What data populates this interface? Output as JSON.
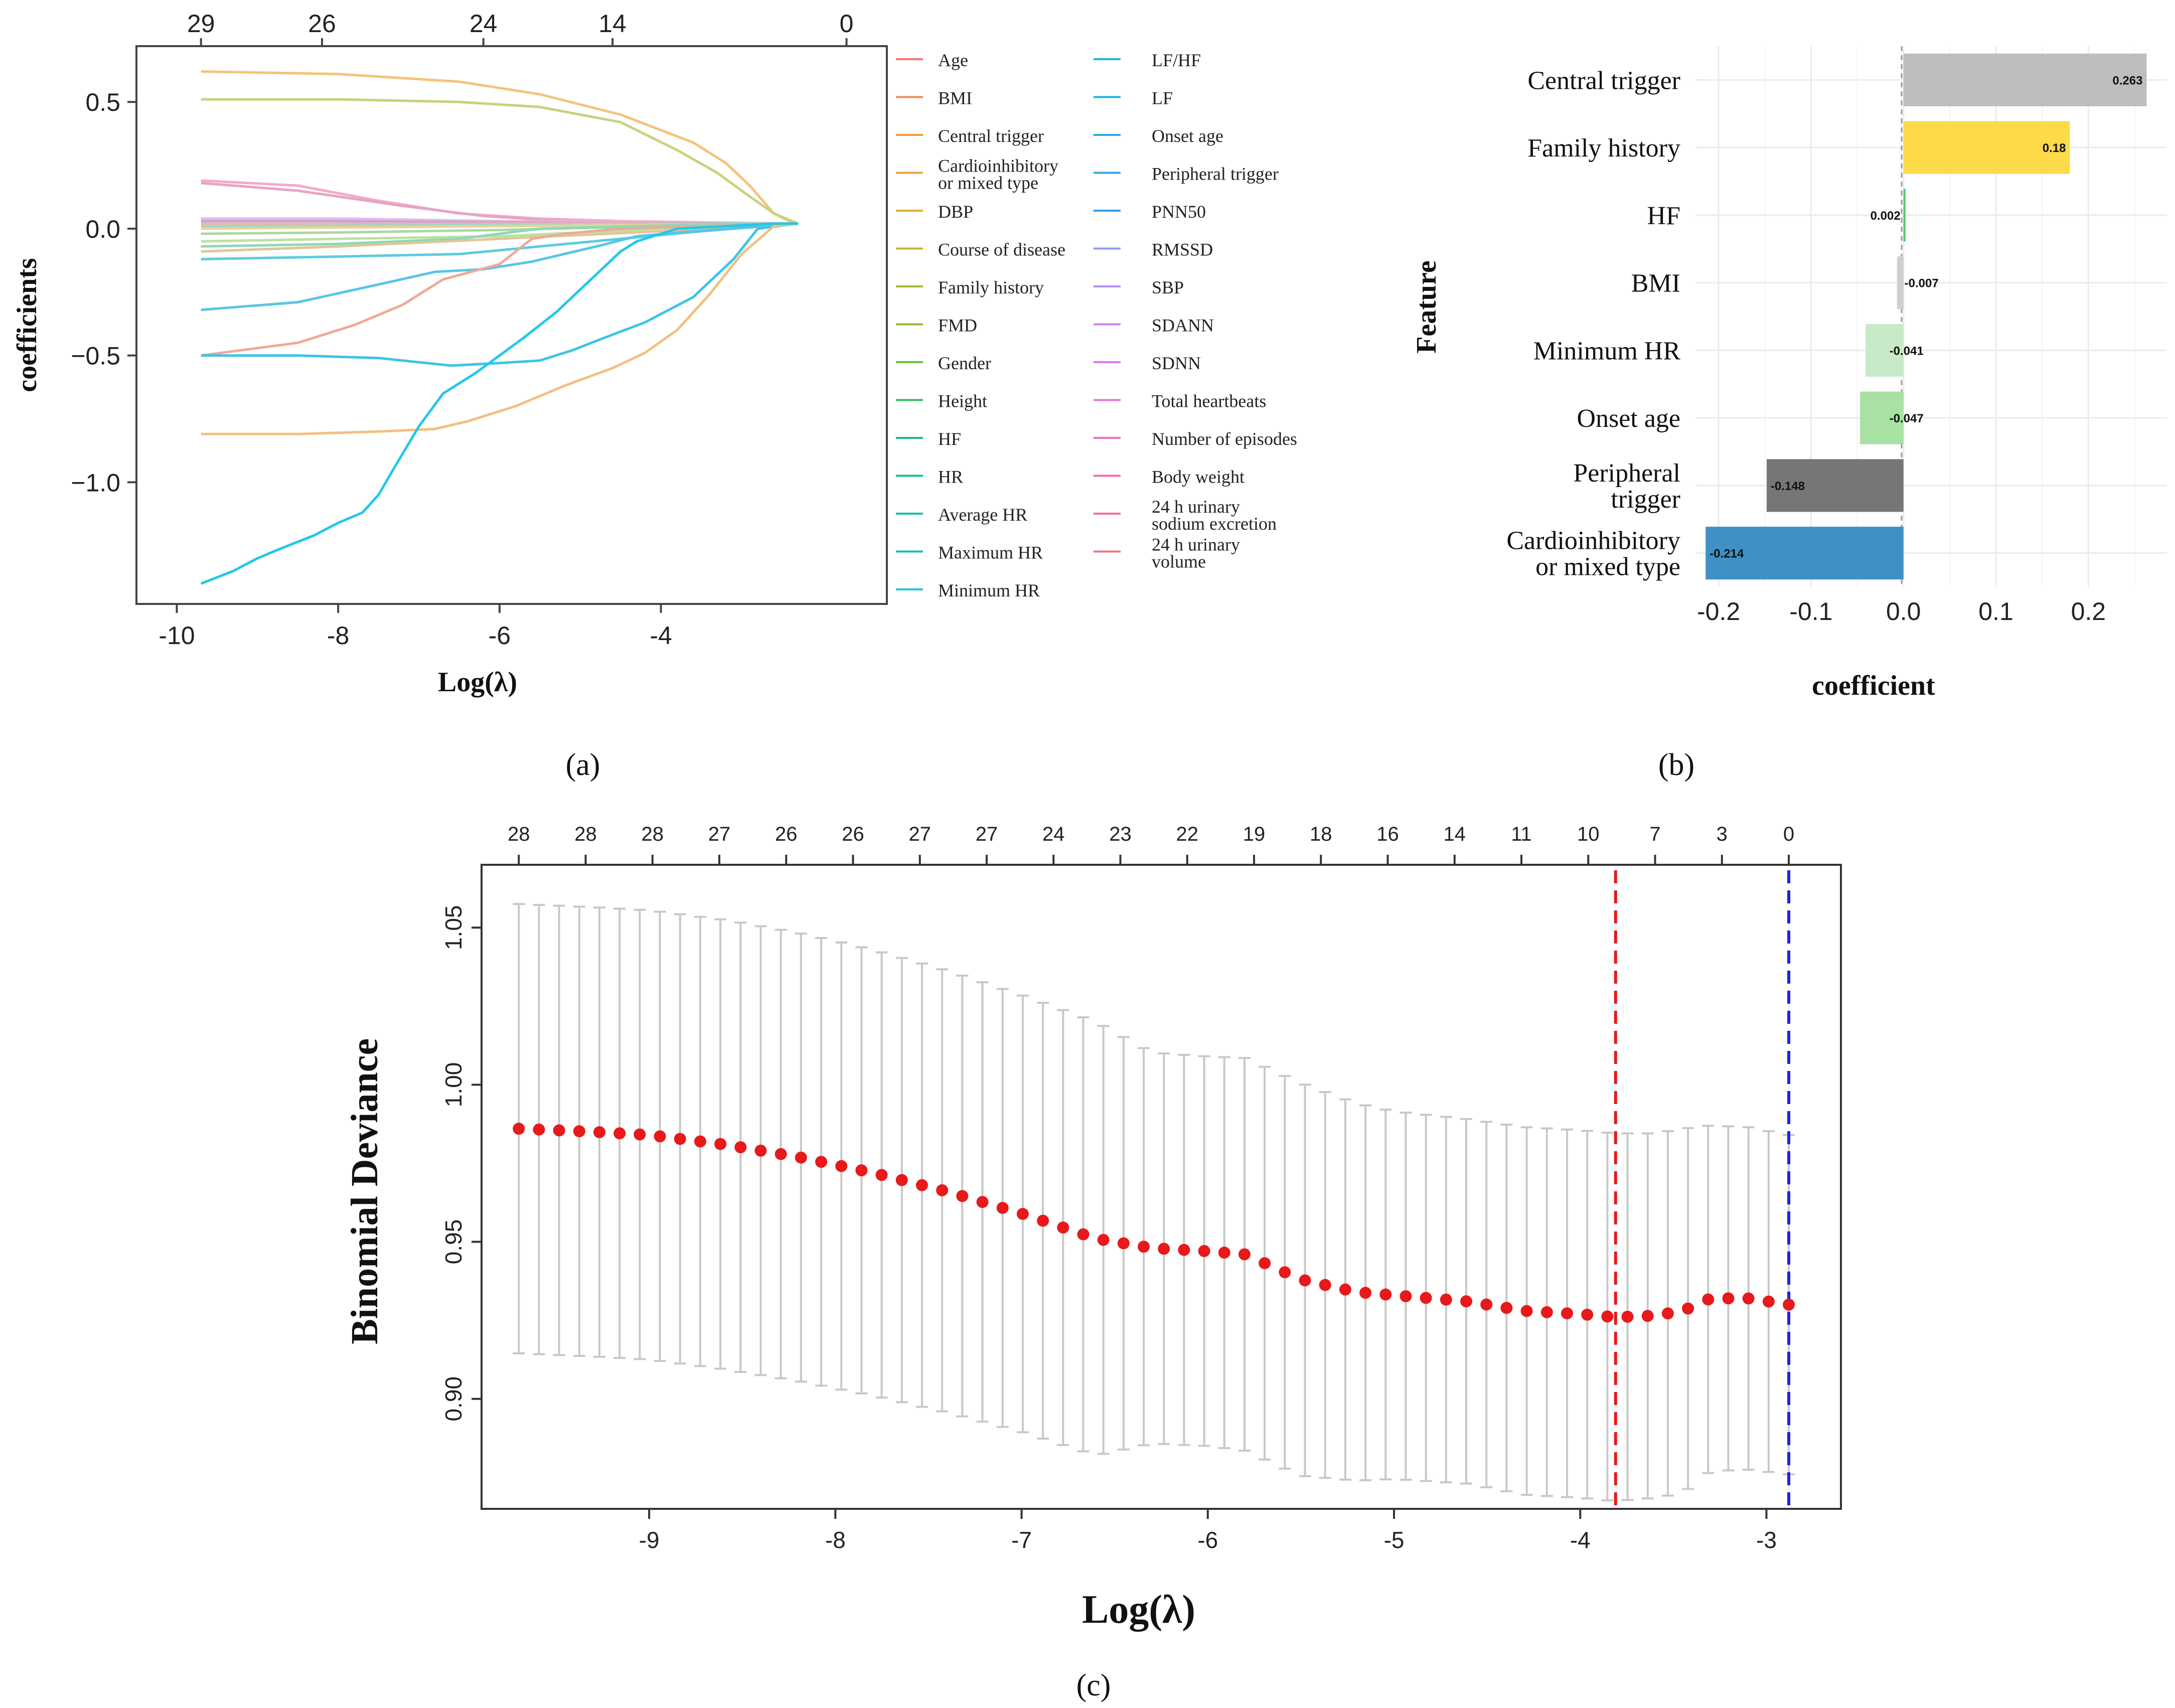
{
  "chart_data": [
    {
      "id": "a",
      "type": "line",
      "panel_label": "(a)",
      "title": "",
      "xlabel": "Log(λ)",
      "ylabel": "coefficients",
      "xlim": [
        -10.5,
        -1.2
      ],
      "ylim": [
        -1.48,
        0.72
      ],
      "xticks": [
        -10,
        -8,
        -6,
        -4
      ],
      "yticks": [
        0.5,
        0.0,
        -0.5,
        -1.0
      ],
      "ytick_labels": [
        "0.5",
        "0.0",
        "−0.5",
        "−1.0"
      ],
      "top_axis_x": [
        -9.7,
        -8.2,
        -6.2,
        -4.6,
        -1.7
      ],
      "top_axis_labels": [
        "29",
        "26",
        "24",
        "14",
        "0"
      ],
      "legend_position": "right",
      "legend_col1": [
        "Age",
        "BMI",
        "Central trigger",
        "Cardioinhibitory or mixed type",
        "DBP",
        "Course of disease",
        "Family history",
        "FMD",
        "Gender",
        "Height",
        "HF",
        "HR",
        "Average HR",
        "Maximum HR",
        "Minimum HR"
      ],
      "legend_col2": [
        "LF/HF",
        "LF",
        "Onset age",
        "Peripheral trigger",
        "PNN50",
        "RMSSD",
        "SBP",
        "SDANN",
        "SDNN",
        "Total heartbeats",
        "Number of episodes",
        "Body weight",
        "24 h urinary sodium excretion",
        "24 h urinary volume"
      ],
      "legend_colors_col1": [
        "#F8766D",
        "#F08A5D",
        "#EE9B3A",
        "#E8A33A",
        "#DDAD2F",
        "#C9B233",
        "#A8B730",
        "#93BB35",
        "#6EC03F",
        "#2DBE5A",
        "#19BF78",
        "#11C08F",
        "#10C0A5",
        "#14BFBA",
        "#1EC8D8"
      ],
      "legend_colors_col2": [
        "#1AB8DD",
        "#1EB3E3",
        "#28ABE6",
        "#35A3EA",
        "#2F9DEB",
        "#8E9AF0",
        "#B48CF2",
        "#CA80F0",
        "#DF78E6",
        "#EB72D6",
        "#F16CC3",
        "#F46AAE",
        "#F56C99",
        "#F47285"
      ],
      "series": [
        {
          "name": "Central trigger",
          "color": "#F5C37A",
          "x": [
            -9.7,
            -8,
            -6.5,
            -5.5,
            -4.5,
            -3.6,
            -3.2,
            -2.9,
            -2.6,
            -2.35
          ],
          "y": [
            0.62,
            0.61,
            0.58,
            0.53,
            0.45,
            0.34,
            0.26,
            0.17,
            0.06,
            0.02
          ]
        },
        {
          "name": "Family history",
          "color": "#C8D27A",
          "x": [
            -9.7,
            -8,
            -6.5,
            -5.5,
            -4.5,
            -3.8,
            -3.3,
            -3.0,
            -2.6,
            -2.3
          ],
          "y": [
            0.51,
            0.51,
            0.5,
            0.48,
            0.42,
            0.31,
            0.22,
            0.15,
            0.06,
            0.02
          ]
        },
        {
          "name": "SDANN",
          "color": "#F6A8C8",
          "x": [
            -9.7,
            -8.5,
            -7.5,
            -6.5,
            -5.5,
            -4.5,
            -3.5,
            -2.3
          ],
          "y": [
            0.19,
            0.17,
            0.11,
            0.06,
            0.04,
            0.03,
            0.025,
            0.02
          ]
        },
        {
          "name": "SDNN",
          "color": "#E7A3C4",
          "x": [
            -9.7,
            -8.5,
            -7.2,
            -6.2,
            -5.2,
            -4.2,
            -3.2,
            -2.3
          ],
          "y": [
            0.18,
            0.15,
            0.09,
            0.05,
            0.03,
            0.025,
            0.02,
            0.02
          ]
        },
        {
          "name": "Total heartbeats",
          "color": "#E6B8E8",
          "x": [
            -9.7,
            -8,
            -6,
            -4,
            -2.3
          ],
          "y": [
            0.04,
            0.04,
            0.03,
            0.025,
            0.02
          ]
        },
        {
          "name": "RMSSD",
          "color": "#BFA3E8",
          "x": [
            -9.7,
            -8,
            -6,
            -4,
            -2.3
          ],
          "y": [
            0.03,
            0.03,
            0.025,
            0.022,
            0.02
          ]
        },
        {
          "name": "Age",
          "color": "#F5B0A6",
          "x": [
            -9.7,
            -8,
            -6,
            -4,
            -2.3
          ],
          "y": [
            0.02,
            0.02,
            0.02,
            0.02,
            0.02
          ]
        },
        {
          "name": "HR",
          "color": "#9DD8C4",
          "x": [
            -9.7,
            -8,
            -6,
            -4,
            -2.3
          ],
          "y": [
            0.01,
            0.012,
            0.015,
            0.018,
            0.02
          ]
        },
        {
          "name": "DBP",
          "color": "#E8D29A",
          "x": [
            -9.7,
            -8,
            -6,
            -4,
            -2.3
          ],
          "y": [
            0.0,
            0.005,
            0.01,
            0.015,
            0.02
          ]
        },
        {
          "name": "Height",
          "color": "#A9D9A0",
          "x": [
            -9.7,
            -8,
            -6,
            -4,
            -2.3
          ],
          "y": [
            -0.02,
            -0.015,
            -0.005,
            0.01,
            0.02
          ]
        },
        {
          "name": "Gender",
          "color": "#BFE0A0",
          "x": [
            -9.7,
            -8,
            -6,
            -4,
            -2.3
          ],
          "y": [
            -0.05,
            -0.04,
            -0.03,
            0.0,
            0.02
          ]
        },
        {
          "name": "Onset age",
          "color": "#8FD7B8",
          "x": [
            -9.7,
            -8,
            -6.5,
            -5.5,
            -4.3,
            -3.2,
            -2.3
          ],
          "y": [
            -0.07,
            -0.06,
            -0.04,
            0.0,
            0.01,
            0.02,
            0.02
          ]
        },
        {
          "name": "Course of disease",
          "color": "#DCC898",
          "x": [
            -9.7,
            -8,
            -6,
            -4,
            -2.3
          ],
          "y": [
            -0.09,
            -0.07,
            -0.04,
            -0.01,
            0.02
          ]
        },
        {
          "name": "Peripheral trigger",
          "color": "#5CCBE0",
          "x": [
            -9.7,
            -8,
            -6.5,
            -5.5,
            -4.5,
            -3.5,
            -2.3
          ],
          "y": [
            -0.12,
            -0.11,
            -0.1,
            -0.07,
            -0.04,
            -0.01,
            0.02
          ]
        },
        {
          "name": "LF",
          "color": "#57C6E4",
          "x": [
            -9.7,
            -8.5,
            -7.5,
            -6.8,
            -6.2,
            -5.6,
            -4.8,
            -4.3,
            -3.6,
            -2.3
          ],
          "y": [
            -0.32,
            -0.29,
            -0.22,
            -0.17,
            -0.16,
            -0.13,
            -0.07,
            -0.03,
            -0.01,
            0.02
          ]
        },
        {
          "name": "BMI",
          "color": "#F0A898",
          "x": [
            -9.7,
            -8.5,
            -7.8,
            -7.2,
            -6.7,
            -6,
            -5.6,
            -5.2,
            -4.5,
            -3.5,
            -2.3
          ],
          "y": [
            -0.5,
            -0.45,
            -0.38,
            -0.3,
            -0.2,
            -0.14,
            -0.04,
            -0.02,
            0.0,
            0.01,
            0.02
          ]
        },
        {
          "name": "Minimum HR",
          "color": "#3BC4E8",
          "x": [
            -9.7,
            -8.5,
            -7.5,
            -6.6,
            -6,
            -5.5,
            -5.1,
            -4.7,
            -4.2,
            -3.6,
            -3.1,
            -2.8,
            -2.3
          ],
          "y": [
            -0.5,
            -0.5,
            -0.51,
            -0.54,
            -0.53,
            -0.52,
            -0.48,
            -0.43,
            -0.37,
            -0.27,
            -0.12,
            0.0,
            0.02
          ]
        },
        {
          "name": "Cardioinhibitory or mixed type",
          "color": "#F2C07E",
          "x": [
            -9.7,
            -8.5,
            -7.5,
            -6.8,
            -6.4,
            -5.8,
            -5.2,
            -4.6,
            -4.2,
            -3.8,
            -3.4,
            -3.0,
            -2.6,
            -2.3
          ],
          "y": [
            -0.81,
            -0.81,
            -0.8,
            -0.79,
            -0.76,
            -0.7,
            -0.62,
            -0.55,
            -0.49,
            -0.4,
            -0.26,
            -0.1,
            0.01,
            0.02
          ]
        },
        {
          "name": "LF/HF",
          "color": "#22C8E8",
          "x": [
            -9.7,
            -9.3,
            -9,
            -8.7,
            -8.3,
            -8,
            -7.7,
            -7.5,
            -7.3,
            -7,
            -6.7,
            -6.3,
            -6,
            -5.7,
            -5.3,
            -5,
            -4.7,
            -4.5,
            -4.3,
            -3.8,
            -3.2,
            -2.6,
            -2.3
          ],
          "y": [
            -1.4,
            -1.35,
            -1.3,
            -1.26,
            -1.21,
            -1.16,
            -1.12,
            -1.05,
            -0.94,
            -0.78,
            -0.65,
            -0.57,
            -0.5,
            -0.43,
            -0.33,
            -0.24,
            -0.15,
            -0.09,
            -0.05,
            0.0,
            0.01,
            0.02,
            0.02
          ]
        }
      ]
    },
    {
      "id": "b",
      "type": "bar",
      "orientation": "horizontal",
      "panel_label": "(b)",
      "title": "",
      "xlabel": "coefficient",
      "ylabel": "Feature",
      "xlim": [
        -0.225,
        0.285
      ],
      "xticks": [
        -0.2,
        -0.1,
        0.0,
        0.1,
        0.2
      ],
      "xtick_labels": [
        "-0.2",
        "-0.1",
        "0.0",
        "0.1",
        "0.2"
      ],
      "categories": [
        [
          "Central trigger"
        ],
        [
          "Family history"
        ],
        [
          "HF"
        ],
        [
          "BMI"
        ],
        [
          "Minimum HR"
        ],
        [
          "Onset age"
        ],
        [
          "Peripheral",
          "trigger"
        ],
        [
          "Cardioinhibitory",
          "or mixed type"
        ]
      ],
      "values": [
        0.263,
        0.18,
        0.002,
        -0.007,
        -0.041,
        -0.047,
        -0.148,
        -0.214
      ],
      "value_labels": [
        "0.263",
        "0.18",
        "0.002",
        "-0.007",
        "-0.041",
        "-0.047",
        "-0.148",
        "-0.214"
      ],
      "colors": [
        "#BEBEBE",
        "#FDDA4A",
        "#4CC76A",
        "#CFCFCF",
        "#C8EAC8",
        "#A9E0A4",
        "#767676",
        "#3F90C6"
      ],
      "grid": true
    },
    {
      "id": "c",
      "type": "scatter",
      "panel_label": "(c)",
      "title": "",
      "xlabel": "Log(λ)",
      "ylabel": "Binomial Deviance",
      "xlim": [
        -9.9,
        -2.6
      ],
      "ylim": [
        0.865,
        1.07
      ],
      "xticks": [
        -9,
        -8,
        -7,
        -6,
        -5,
        -4,
        -3
      ],
      "yticks": [
        0.9,
        0.95,
        1.0,
        1.05
      ],
      "ytick_labels": [
        "0.90",
        "0.95",
        "1.00",
        "1.05"
      ],
      "top_axis_labels": [
        "28",
        "28",
        "28",
        "27",
        "26",
        "26",
        "27",
        "27",
        "24",
        "23",
        "22",
        "19",
        "18",
        "16",
        "14",
        "11",
        "10",
        "7",
        "3",
        "0"
      ],
      "lambda_min": -3.81,
      "lambda_1se": -2.88,
      "lambda_min_color": "#E8191A",
      "lambda_1se_color": "#1A22E0",
      "point_color": "#E8191A",
      "errorbar_color": "#C8C8C8",
      "x_start": -9.7,
      "x_end": -2.88,
      "n_points": 64,
      "curve_x": [
        -9.7,
        -9.3,
        -9.0,
        -8.6,
        -8.2,
        -7.8,
        -7.4,
        -7.0,
        -6.6,
        -6.3,
        -6.0,
        -5.8,
        -5.5,
        -5.2,
        -5.0,
        -4.6,
        -4.3,
        -4.0,
        -3.81,
        -3.6,
        -3.45,
        -3.3,
        -3.1,
        -2.88
      ],
      "curve_y": [
        0.986,
        0.985,
        0.984,
        0.981,
        0.977,
        0.972,
        0.966,
        0.959,
        0.951,
        0.948,
        0.947,
        0.946,
        0.938,
        0.934,
        0.933,
        0.931,
        0.928,
        0.927,
        0.926,
        0.9265,
        0.928,
        0.932,
        0.932,
        0.93
      ],
      "err_x": [
        -9.7,
        -9.0,
        -8.5,
        -8.0,
        -7.5,
        -7.0,
        -6.6,
        -6.3,
        -6.0,
        -5.8,
        -5.5,
        -5.2,
        -5.0,
        -4.6,
        -4.3,
        -4.0,
        -3.81,
        -3.6,
        -3.45,
        -3.3,
        -3.1,
        -2.88
      ],
      "err_y": [
        0.0715,
        0.0715,
        0.0715,
        0.0712,
        0.0705,
        0.0695,
        0.069,
        0.0622,
        0.062,
        0.0625,
        0.0625,
        0.06,
        0.0585,
        0.058,
        0.0585,
        0.0585,
        0.0585,
        0.058,
        0.058,
        0.055,
        0.0545,
        0.054
      ]
    }
  ]
}
